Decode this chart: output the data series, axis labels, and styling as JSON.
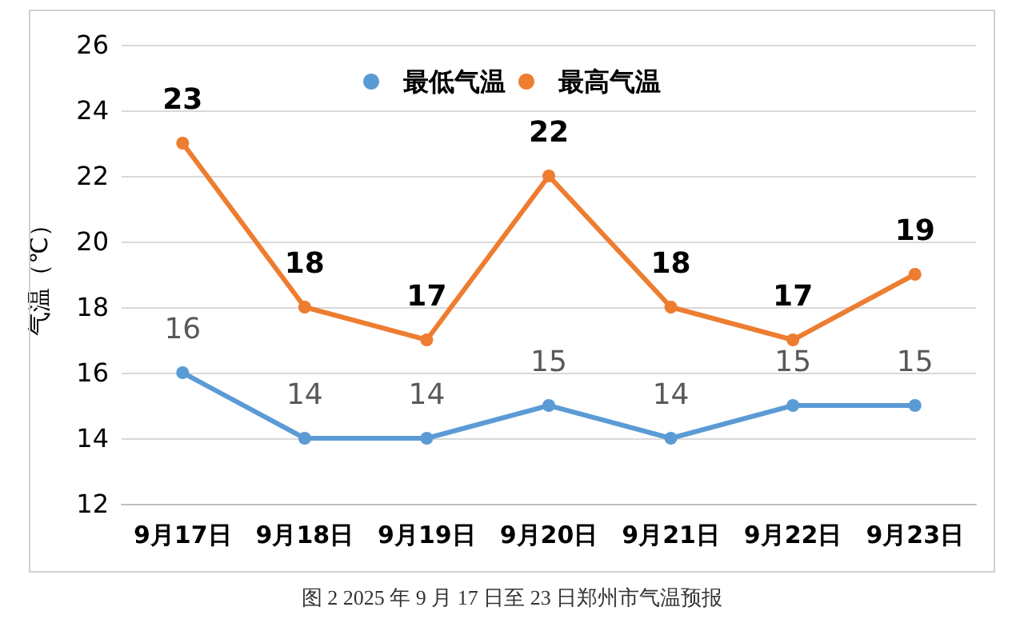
{
  "chart_data": {
    "type": "line",
    "title": "图 2 2025 年 9 月 17 日至 23 日郑州市气温预报",
    "ylabel": "气温（℃）",
    "categories": [
      "9月17日",
      "9月18日",
      "9月19日",
      "9月20日",
      "9月21日",
      "9月22日",
      "9月23日"
    ],
    "series": [
      {
        "name": "最低气温",
        "color": "#5b9bd5",
        "values": [
          16,
          14,
          14,
          15,
          14,
          15,
          15
        ]
      },
      {
        "name": "最高气温",
        "color": "#ed7d31",
        "values": [
          23,
          18,
          17,
          22,
          18,
          17,
          19
        ]
      }
    ],
    "ylim": [
      12,
      26
    ],
    "yticks": [
      12,
      14,
      16,
      18,
      20,
      22,
      24,
      26
    ],
    "grid": "y",
    "legend": "top",
    "marker": "circle",
    "line_style": "solid",
    "data_labels": true
  }
}
